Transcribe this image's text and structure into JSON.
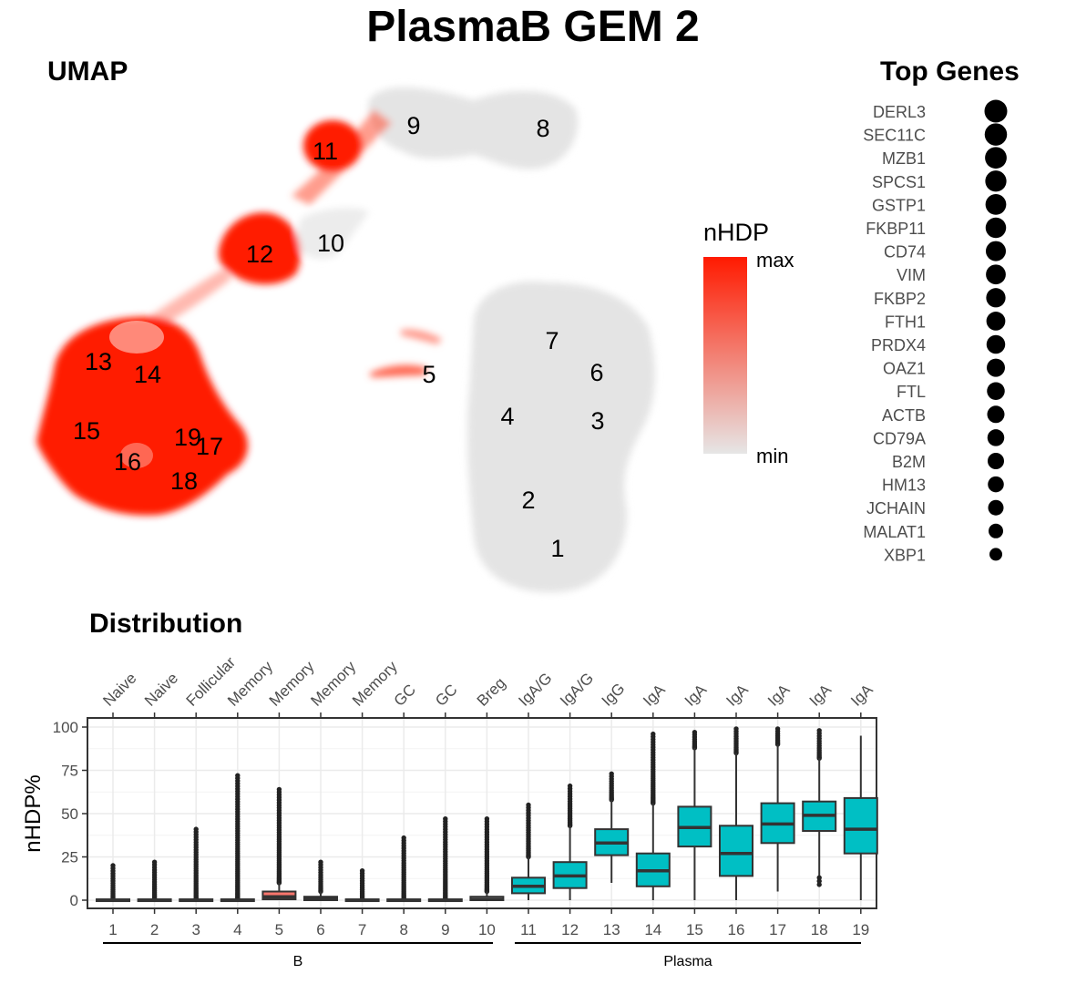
{
  "title": "PlasmaB GEM 2",
  "umap": {
    "panel_title": "UMAP",
    "legend_title": "nHDP",
    "legend_max": "max",
    "legend_min": "min",
    "color_low": "#e6e6e6",
    "color_high": "#ff1a00",
    "clusters": [
      {
        "label": "1",
        "level": 0.0
      },
      {
        "label": "2",
        "level": 0.02
      },
      {
        "label": "3",
        "level": 0.1
      },
      {
        "label": "4",
        "level": 0.05
      },
      {
        "label": "5",
        "level": 0.25
      },
      {
        "label": "6",
        "level": 0.12
      },
      {
        "label": "7",
        "level": 0.05
      },
      {
        "label": "8",
        "level": 0.15
      },
      {
        "label": "9",
        "level": 0.2
      },
      {
        "label": "10",
        "level": 0.3
      },
      {
        "label": "11",
        "level": 0.8
      },
      {
        "label": "12",
        "level": 0.9
      },
      {
        "label": "13",
        "level": 0.95
      },
      {
        "label": "14",
        "level": 0.95
      },
      {
        "label": "15",
        "level": 0.95
      },
      {
        "label": "16",
        "level": 0.95
      },
      {
        "label": "17",
        "level": 0.95
      },
      {
        "label": "18",
        "level": 0.95
      },
      {
        "label": "19",
        "level": 0.95
      }
    ]
  },
  "top_genes": {
    "panel_title": "Top Genes",
    "genes": [
      {
        "name": "DERL3",
        "size": 1.0
      },
      {
        "name": "SEC11C",
        "size": 0.98
      },
      {
        "name": "MZB1",
        "size": 0.95
      },
      {
        "name": "SPCS1",
        "size": 0.93
      },
      {
        "name": "GSTP1",
        "size": 0.91
      },
      {
        "name": "FKBP11",
        "size": 0.9
      },
      {
        "name": "CD74",
        "size": 0.88
      },
      {
        "name": "VIM",
        "size": 0.87
      },
      {
        "name": "FKBP2",
        "size": 0.85
      },
      {
        "name": "FTH1",
        "size": 0.83
      },
      {
        "name": "PRDX4",
        "size": 0.82
      },
      {
        "name": "OAZ1",
        "size": 0.8
      },
      {
        "name": "FTL",
        "size": 0.78
      },
      {
        "name": "ACTB",
        "size": 0.76
      },
      {
        "name": "CD79A",
        "size": 0.74
      },
      {
        "name": "B2M",
        "size": 0.72
      },
      {
        "name": "HM13",
        "size": 0.7
      },
      {
        "name": "JCHAIN",
        "size": 0.68
      },
      {
        "name": "MALAT1",
        "size": 0.64
      },
      {
        "name": "XBP1",
        "size": 0.56
      }
    ]
  },
  "distribution": {
    "panel_title": "Distribution",
    "group_B": "B",
    "group_Plasma": "Plasma"
  },
  "chart_data": {
    "type": "box",
    "title": "Distribution",
    "ylabel": "nHDP%",
    "ylim": [
      0,
      100
    ],
    "yticks": [
      0,
      25,
      50,
      75,
      100
    ],
    "grid": true,
    "categories": [
      "1",
      "2",
      "3",
      "4",
      "5",
      "6",
      "7",
      "8",
      "9",
      "10",
      "11",
      "12",
      "13",
      "14",
      "15",
      "16",
      "17",
      "18",
      "19"
    ],
    "top_labels": [
      "Naive",
      "Naive",
      "Follicular",
      "Memory",
      "Memory",
      "Memory",
      "Memory",
      "GC",
      "GC",
      "Breg",
      "IgA/G",
      "IgA/G",
      "IgG",
      "IgA",
      "IgA",
      "IgA",
      "IgA",
      "IgA",
      "IgA"
    ],
    "groups": [
      {
        "name": "B",
        "clusters": [
          "1",
          "2",
          "3",
          "4",
          "5",
          "6",
          "7",
          "8",
          "9",
          "10"
        ]
      },
      {
        "name": "Plasma",
        "clusters": [
          "11",
          "12",
          "13",
          "14",
          "15",
          "16",
          "17",
          "18",
          "19"
        ]
      }
    ],
    "colors": {
      "B": "#ffffff",
      "highlight": "#f8766d",
      "Plasma": "#00bfc4"
    },
    "boxes": [
      {
        "cluster": "1",
        "q1": 0,
        "median": 0,
        "q3": 0.5,
        "whisker_low": 0,
        "whisker_high": 0.5,
        "outlier_max": 20,
        "fill": "B"
      },
      {
        "cluster": "2",
        "q1": 0,
        "median": 0,
        "q3": 0.5,
        "whisker_low": 0,
        "whisker_high": 0.5,
        "outlier_max": 22,
        "fill": "B"
      },
      {
        "cluster": "3",
        "q1": 0,
        "median": 0,
        "q3": 0.5,
        "whisker_low": 0,
        "whisker_high": 0.5,
        "outlier_max": 41,
        "fill": "B"
      },
      {
        "cluster": "4",
        "q1": 0,
        "median": 0,
        "q3": 0.5,
        "whisker_low": 0,
        "whisker_high": 0.5,
        "outlier_max": 72,
        "fill": "B"
      },
      {
        "cluster": "5",
        "q1": 0.5,
        "median": 2,
        "q3": 5,
        "whisker_low": 0,
        "whisker_high": 10,
        "outlier_max": 64,
        "fill": "highlight"
      },
      {
        "cluster": "6",
        "q1": 0,
        "median": 1,
        "q3": 2,
        "whisker_low": 0,
        "whisker_high": 5,
        "outlier_max": 22,
        "fill": "B"
      },
      {
        "cluster": "7",
        "q1": 0,
        "median": 0,
        "q3": 0.5,
        "whisker_low": 0,
        "whisker_high": 0.5,
        "outlier_max": 17,
        "fill": "B"
      },
      {
        "cluster": "8",
        "q1": 0,
        "median": 0,
        "q3": 0.5,
        "whisker_low": 0,
        "whisker_high": 0.5,
        "outlier_max": 36,
        "fill": "B"
      },
      {
        "cluster": "9",
        "q1": 0,
        "median": 0,
        "q3": 0.5,
        "whisker_low": 0,
        "whisker_high": 0.5,
        "outlier_max": 47,
        "fill": "B"
      },
      {
        "cluster": "10",
        "q1": 0,
        "median": 0.5,
        "q3": 2,
        "whisker_low": 0,
        "whisker_high": 5,
        "outlier_max": 47,
        "fill": "B"
      },
      {
        "cluster": "11",
        "q1": 4,
        "median": 8,
        "q3": 13,
        "whisker_low": 0,
        "whisker_high": 25,
        "outlier_max": 55,
        "fill": "Plasma"
      },
      {
        "cluster": "12",
        "q1": 7,
        "median": 14,
        "q3": 22,
        "whisker_low": 0,
        "whisker_high": 43,
        "outlier_max": 66,
        "fill": "Plasma"
      },
      {
        "cluster": "13",
        "q1": 26,
        "median": 33,
        "q3": 41,
        "whisker_low": 10,
        "whisker_high": 58,
        "outlier_max": 73,
        "fill": "Plasma"
      },
      {
        "cluster": "14",
        "q1": 8,
        "median": 17,
        "q3": 27,
        "whisker_low": 0,
        "whisker_high": 56,
        "outlier_max": 96,
        "fill": "Plasma"
      },
      {
        "cluster": "15",
        "q1": 31,
        "median": 42,
        "q3": 54,
        "whisker_low": 0,
        "whisker_high": 88,
        "outlier_max": 97,
        "fill": "Plasma"
      },
      {
        "cluster": "16",
        "q1": 14,
        "median": 27,
        "q3": 43,
        "whisker_low": 0,
        "whisker_high": 85,
        "outlier_max": 99,
        "fill": "Plasma"
      },
      {
        "cluster": "17",
        "q1": 33,
        "median": 44,
        "q3": 56,
        "whisker_low": 5,
        "whisker_high": 90,
        "outlier_max": 99,
        "fill": "Plasma"
      },
      {
        "cluster": "18",
        "q1": 40,
        "median": 49,
        "q3": 57,
        "whisker_low": 14,
        "whisker_high": 82,
        "outlier_max": 98,
        "fill": "Plasma"
      },
      {
        "cluster": "19",
        "q1": 27,
        "median": 41,
        "q3": 59,
        "whisker_low": 0,
        "whisker_high": 95,
        "outlier_max": 95,
        "fill": "Plasma"
      }
    ]
  }
}
